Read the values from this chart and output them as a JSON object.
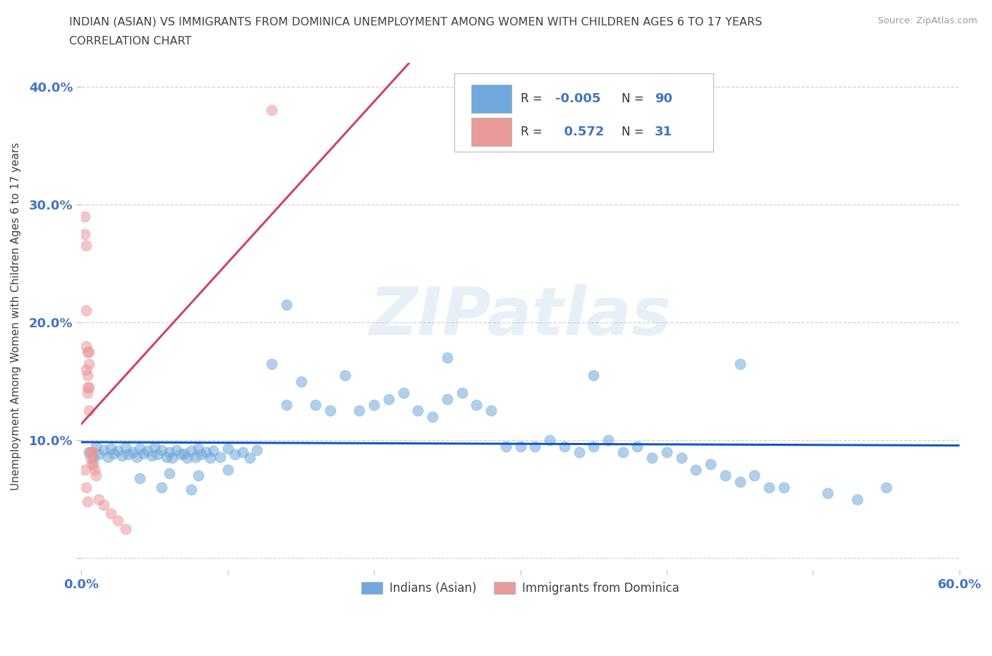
{
  "title_line1": "INDIAN (ASIAN) VS IMMIGRANTS FROM DOMINICA UNEMPLOYMENT AMONG WOMEN WITH CHILDREN AGES 6 TO 17 YEARS",
  "title_line2": "CORRELATION CHART",
  "source_text": "Source: ZipAtlas.com",
  "ylabel": "Unemployment Among Women with Children Ages 6 to 17 years",
  "xlim": [
    0.0,
    0.6
  ],
  "ylim": [
    -0.01,
    0.42
  ],
  "blue_color": "#6fa8dc",
  "pink_color": "#ea9999",
  "trendline_blue_color": "#1155cc",
  "trendline_pink_color": "#cc4466",
  "grid_color": "#cccccc",
  "bg_color": "#ffffff",
  "watermark": "ZIPatlas",
  "r_blue": "-0.005",
  "n_blue": "90",
  "r_pink": "0.572",
  "n_pink": "31",
  "label_blue": "Indians (Asian)",
  "label_pink": "Immigrants from Dominica",
  "tick_color": "#4472c4",
  "title_color": "#404040",
  "blue_x": [
    0.005,
    0.008,
    0.01,
    0.012,
    0.015,
    0.018,
    0.02,
    0.022,
    0.025,
    0.028,
    0.03,
    0.032,
    0.035,
    0.038,
    0.04,
    0.042,
    0.045,
    0.048,
    0.05,
    0.052,
    0.055,
    0.058,
    0.06,
    0.062,
    0.065,
    0.068,
    0.07,
    0.072,
    0.075,
    0.078,
    0.08,
    0.082,
    0.085,
    0.088,
    0.09,
    0.095,
    0.1,
    0.105,
    0.11,
    0.115,
    0.12,
    0.13,
    0.14,
    0.15,
    0.16,
    0.17,
    0.18,
    0.19,
    0.2,
    0.21,
    0.22,
    0.23,
    0.24,
    0.25,
    0.26,
    0.27,
    0.28,
    0.29,
    0.3,
    0.31,
    0.32,
    0.33,
    0.34,
    0.35,
    0.36,
    0.37,
    0.38,
    0.39,
    0.4,
    0.41,
    0.42,
    0.43,
    0.44,
    0.45,
    0.46,
    0.47,
    0.48,
    0.51,
    0.53,
    0.55,
    0.14,
    0.25,
    0.35,
    0.45,
    0.04,
    0.06,
    0.08,
    0.1,
    0.055,
    0.075
  ],
  "blue_y": [
    0.09,
    0.085,
    0.095,
    0.088,
    0.092,
    0.086,
    0.093,
    0.089,
    0.091,
    0.087,
    0.094,
    0.088,
    0.09,
    0.086,
    0.093,
    0.089,
    0.091,
    0.087,
    0.094,
    0.088,
    0.092,
    0.086,
    0.09,
    0.085,
    0.092,
    0.088,
    0.089,
    0.085,
    0.091,
    0.086,
    0.093,
    0.088,
    0.09,
    0.085,
    0.091,
    0.086,
    0.093,
    0.088,
    0.09,
    0.085,
    0.092,
    0.165,
    0.13,
    0.15,
    0.13,
    0.125,
    0.155,
    0.125,
    0.13,
    0.135,
    0.14,
    0.125,
    0.12,
    0.135,
    0.14,
    0.13,
    0.125,
    0.095,
    0.095,
    0.095,
    0.1,
    0.095,
    0.09,
    0.095,
    0.1,
    0.09,
    0.095,
    0.085,
    0.09,
    0.085,
    0.075,
    0.08,
    0.07,
    0.065,
    0.07,
    0.06,
    0.06,
    0.055,
    0.05,
    0.06,
    0.215,
    0.17,
    0.155,
    0.165,
    0.068,
    0.072,
    0.07,
    0.075,
    0.06,
    0.058
  ],
  "pink_x": [
    0.13,
    0.002,
    0.002,
    0.003,
    0.003,
    0.003,
    0.003,
    0.004,
    0.004,
    0.004,
    0.004,
    0.005,
    0.005,
    0.005,
    0.005,
    0.006,
    0.006,
    0.007,
    0.007,
    0.008,
    0.008,
    0.009,
    0.01,
    0.012,
    0.015,
    0.02,
    0.025,
    0.03,
    0.002,
    0.003,
    0.004
  ],
  "pink_y": [
    0.38,
    0.29,
    0.275,
    0.265,
    0.21,
    0.18,
    0.16,
    0.175,
    0.155,
    0.145,
    0.14,
    0.175,
    0.165,
    0.145,
    0.125,
    0.09,
    0.085,
    0.09,
    0.08,
    0.09,
    0.08,
    0.075,
    0.07,
    0.05,
    0.045,
    0.038,
    0.032,
    0.025,
    0.075,
    0.06,
    0.048
  ]
}
